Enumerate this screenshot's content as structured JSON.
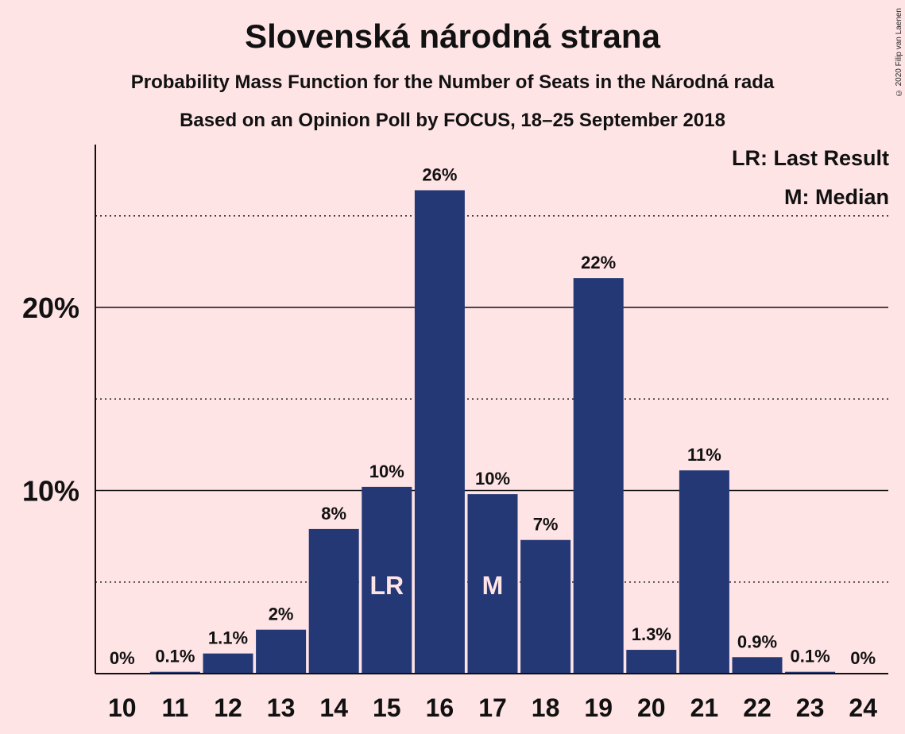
{
  "header": {
    "title": "Slovenská národná strana",
    "subtitle": "Probability Mass Function for the Number of Seats in the Národná rada",
    "subtitle2": "Based on an Opinion Poll by FOCUS, 18–25 September 2018",
    "copyright": "© 2020 Filip van Laenen"
  },
  "legend": {
    "lr": "LR: Last Result",
    "m": "M: Median"
  },
  "colors": {
    "bar": "#243876",
    "background": "#ffe4e6"
  },
  "chart_data": {
    "type": "bar",
    "categories": [
      "10",
      "11",
      "12",
      "13",
      "14",
      "15",
      "16",
      "17",
      "18",
      "19",
      "20",
      "21",
      "22",
      "23",
      "24"
    ],
    "values": [
      0,
      0.1,
      1.1,
      2.4,
      7.9,
      10.2,
      26.4,
      9.8,
      7.3,
      21.6,
      1.3,
      11.1,
      0.9,
      0.1,
      0
    ],
    "data_labels": [
      "0%",
      "0.1%",
      "1.1%",
      "2%",
      "8%",
      "10%",
      "26%",
      "10%",
      "7%",
      "22%",
      "1.3%",
      "11%",
      "0.9%",
      "0.1%",
      "0%"
    ],
    "bar_markers": {
      "15": "LR",
      "17": "M"
    },
    "ylim": [
      0,
      28.5
    ],
    "yticks": [
      10,
      20
    ],
    "ytick_labels": [
      "10%",
      "20%"
    ],
    "minor_gridlines": [
      5,
      15,
      25
    ],
    "xlabel": "",
    "ylabel": "",
    "grid": true,
    "legend_position": "top-right"
  }
}
